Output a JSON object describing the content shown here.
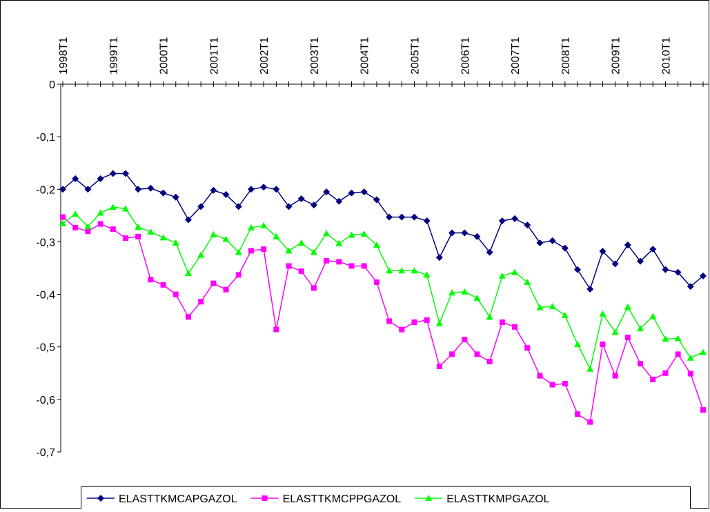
{
  "chart_data": {
    "type": "line",
    "categories": [
      "1998T1",
      null,
      null,
      null,
      "1999T1",
      null,
      null,
      null,
      "2000T1",
      null,
      null,
      null,
      "2001T1",
      null,
      null,
      null,
      "2002T1",
      null,
      null,
      null,
      "2003T1",
      null,
      null,
      null,
      "2004T1",
      null,
      null,
      null,
      "2005T1",
      null,
      null,
      null,
      "2006T1",
      null,
      null,
      null,
      "2007T1",
      null,
      null,
      null,
      "2008T1",
      null,
      null,
      null,
      "2009T1",
      null,
      null,
      null,
      "2010T1",
      null,
      null,
      null
    ],
    "series": [
      {
        "name": "ELASTTKMCAPGAZOL",
        "color": "#000080",
        "marker": "diamond",
        "values": [
          -0.2,
          -0.18,
          -0.2,
          -0.18,
          -0.17,
          -0.17,
          -0.2,
          -0.198,
          -0.207,
          -0.215,
          -0.258,
          -0.233,
          -0.202,
          -0.21,
          -0.233,
          -0.2,
          -0.196,
          -0.2,
          -0.233,
          -0.218,
          -0.23,
          -0.205,
          -0.223,
          -0.207,
          -0.205,
          -0.22,
          -0.253,
          -0.253,
          -0.253,
          -0.26,
          -0.33,
          -0.283,
          -0.283,
          -0.29,
          -0.32,
          -0.26,
          -0.256,
          -0.268,
          -0.302,
          -0.298,
          -0.312,
          -0.353,
          -0.39,
          -0.318,
          -0.342,
          -0.306,
          -0.337,
          -0.314,
          -0.353,
          -0.358,
          -0.385,
          -0.365
        ]
      },
      {
        "name": "ELASTTKMCPPGAZOL",
        "color": "#ff00ff",
        "marker": "square",
        "values": [
          -0.253,
          -0.273,
          -0.28,
          -0.266,
          -0.276,
          -0.293,
          -0.29,
          -0.372,
          -0.382,
          -0.4,
          -0.443,
          -0.414,
          -0.379,
          -0.391,
          -0.363,
          -0.317,
          -0.314,
          -0.467,
          -0.346,
          -0.356,
          -0.388,
          -0.336,
          -0.338,
          -0.346,
          -0.346,
          -0.377,
          -0.451,
          -0.467,
          -0.453,
          -0.449,
          -0.537,
          -0.514,
          -0.486,
          -0.514,
          -0.528,
          -0.453,
          -0.462,
          -0.502,
          -0.555,
          -0.572,
          -0.57,
          -0.628,
          -0.643,
          -0.495,
          -0.555,
          -0.482,
          -0.532,
          -0.562,
          -0.55,
          -0.514,
          -0.551,
          -0.62
        ]
      },
      {
        "name": "ELASTTKMPGAZOL",
        "color": "#00ff00",
        "marker": "triangle",
        "values": [
          -0.265,
          -0.247,
          -0.271,
          -0.245,
          -0.234,
          -0.237,
          -0.272,
          -0.281,
          -0.292,
          -0.302,
          -0.36,
          -0.325,
          -0.286,
          -0.295,
          -0.32,
          -0.273,
          -0.269,
          -0.29,
          -0.317,
          -0.302,
          -0.32,
          -0.284,
          -0.303,
          -0.287,
          -0.285,
          -0.306,
          -0.355,
          -0.355,
          -0.355,
          -0.363,
          -0.455,
          -0.397,
          -0.395,
          -0.407,
          -0.443,
          -0.365,
          -0.358,
          -0.377,
          -0.425,
          -0.423,
          -0.44,
          -0.495,
          -0.542,
          -0.437,
          -0.472,
          -0.424,
          -0.465,
          -0.442,
          -0.485,
          -0.484,
          -0.521,
          -0.51
        ]
      }
    ],
    "ylim": [
      -0.7,
      0
    ],
    "yticks": [
      0,
      {
        "value": -0.1,
        "label": "-0,1"
      },
      {
        "value": -0.2,
        "label": "-0,2"
      },
      {
        "value": -0.3,
        "label": "-0,3"
      },
      {
        "value": -0.4,
        "label": "-0,4"
      },
      {
        "value": -0.5,
        "label": "-0,5"
      },
      {
        "value": -0.6,
        "label": "-0,6"
      },
      {
        "value": -0.7,
        "label": "-0,7"
      }
    ],
    "grid": false,
    "legend": "bottom"
  }
}
